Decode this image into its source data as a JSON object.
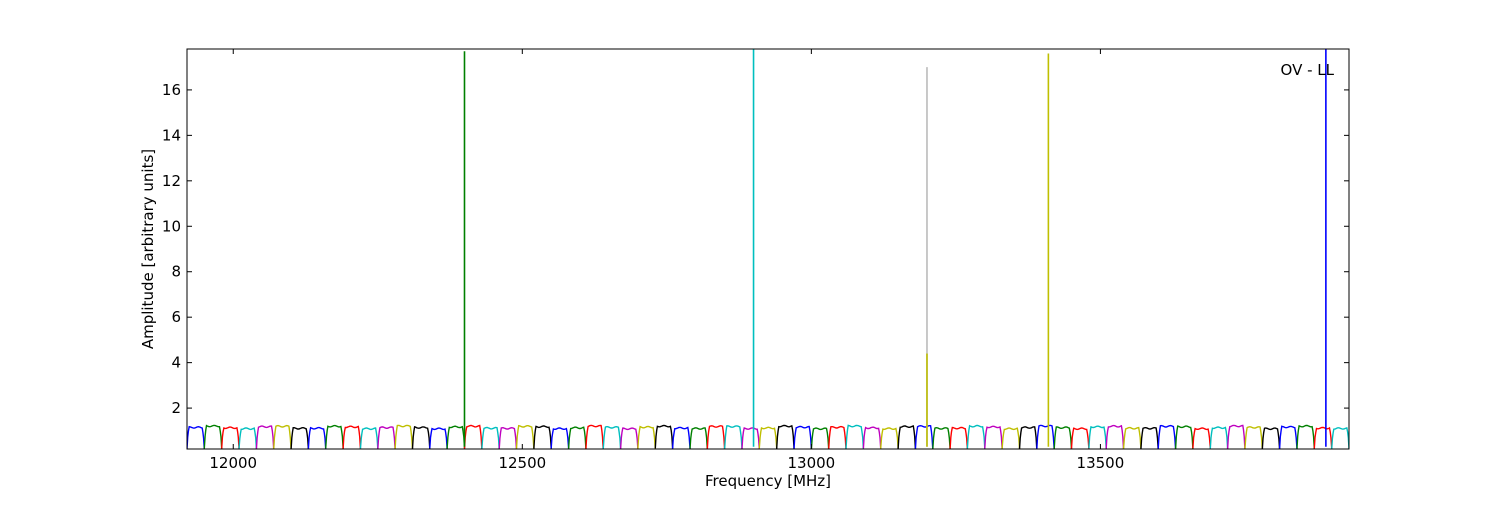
{
  "chart_data": {
    "type": "line",
    "title": "",
    "xlabel": "Frequency [MHz]",
    "ylabel": "Amplitude [arbitrary units]",
    "annotation": "OV - LL",
    "xlim": [
      11920,
      13930
    ],
    "ylim": [
      0.2,
      17.8
    ],
    "xticks": [
      12000,
      12500,
      13000,
      13500
    ],
    "xtick_labels": [
      "12000",
      "12500",
      "13000",
      "13500"
    ],
    "yticks": [
      2,
      4,
      6,
      8,
      10,
      12,
      14,
      16
    ],
    "ytick_labels": [
      "2",
      "4",
      "6",
      "8",
      "10",
      "12",
      "14",
      "16"
    ],
    "grid": false,
    "band_width_mhz": 30,
    "band_start_mhz": 11920,
    "band_level": 1.15,
    "band_color_cycle": [
      "#0000ff",
      "#008000",
      "#ff0000",
      "#00bfbf",
      "#bf00bf",
      "#bfbf00",
      "#000000"
    ],
    "spikes": [
      {
        "x": 12400,
        "y": 17.7,
        "color": "#008000"
      },
      {
        "x": 12900,
        "y": 17.8,
        "color": "#00bfbf"
      },
      {
        "x": 13200,
        "y": 17.0,
        "color": "#bbbbbb"
      },
      {
        "x": 13200,
        "y": 4.4,
        "color": "#bfbf00"
      },
      {
        "x": 13410,
        "y": 17.6,
        "color": "#bfbf00"
      },
      {
        "x": 13890,
        "y": 17.8,
        "color": "#0000ff"
      }
    ]
  }
}
